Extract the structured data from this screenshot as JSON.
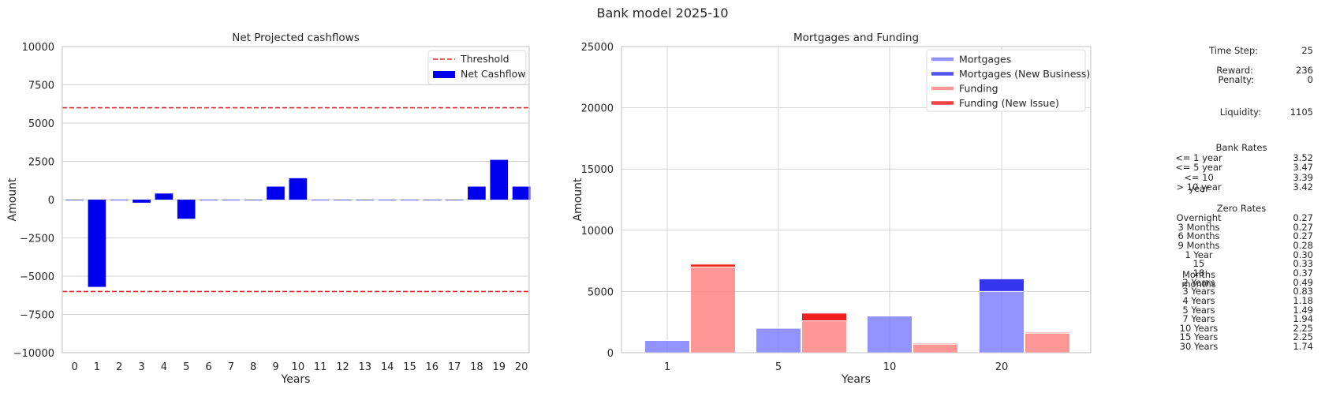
{
  "suptitle": "Bank model 2025-10",
  "chart_data": [
    {
      "type": "bar",
      "title": "Net Projected cashflows",
      "xlabel": "Years",
      "ylabel": "Amount",
      "categories": [
        "0",
        "1",
        "2",
        "3",
        "4",
        "5",
        "6",
        "7",
        "8",
        "9",
        "10",
        "11",
        "12",
        "13",
        "14",
        "15",
        "16",
        "17",
        "18",
        "19",
        "20"
      ],
      "series": [
        {
          "name": "Net Cashflow",
          "color": "#0000ee",
          "values": [
            0,
            -5700,
            0,
            -200,
            400,
            -1250,
            0,
            0,
            0,
            850,
            1400,
            0,
            0,
            0,
            0,
            0,
            0,
            0,
            850,
            2600,
            850
          ]
        }
      ],
      "threshold": {
        "name": "Threshold",
        "values": [
          6000,
          -6000
        ],
        "color": "#d62728"
      },
      "ylim": [
        -10000,
        10000
      ],
      "yticks": [
        10000,
        7500,
        5000,
        2500,
        0,
        -2500,
        -5000,
        -7500,
        -10000
      ],
      "ytick_labels": [
        "10000",
        "7500",
        "5000",
        "2500",
        "0",
        "−2500",
        "−5000",
        "−7500",
        "−10000"
      ],
      "grid": true,
      "legend": "top-right"
    },
    {
      "type": "bar",
      "title": "Mortgages and Funding",
      "xlabel": "Years",
      "ylabel": "Amount",
      "categories": [
        "1",
        "5",
        "10",
        "20"
      ],
      "series": [
        {
          "name": "Mortgages",
          "color": "#8080ff",
          "values": [
            1000,
            2000,
            3000,
            5000
          ]
        },
        {
          "name": "Mortgages (New Business)",
          "color": "#3535ee",
          "values": [
            0,
            0,
            0,
            1000
          ]
        },
        {
          "name": "Funding",
          "color": "#ff8585",
          "values": [
            7000,
            2600,
            700,
            1600
          ]
        },
        {
          "name": "Funding (New Issue)",
          "color": "#ee2020",
          "values": [
            200,
            600,
            50,
            50
          ]
        }
      ],
      "stacked": true,
      "ylim": [
        0,
        25000
      ],
      "yticks": [
        0,
        5000,
        10000,
        15000,
        20000,
        25000
      ],
      "grid": true,
      "legend": "top-right"
    }
  ],
  "side_panel": {
    "time_step": {
      "label": "Time Step:",
      "value": "25"
    },
    "reward": {
      "label": "Reward:",
      "value": "236"
    },
    "penalty": {
      "label": "Penalty:",
      "value": "0"
    },
    "liquidity": {
      "label": "Liquidity:",
      "value": "1105"
    },
    "bank_rates_title": "Bank Rates",
    "bank_rates": [
      {
        "label": "<= 1 year",
        "value": "3.52"
      },
      {
        "label": "<= 5 year",
        "value": "3.47"
      },
      {
        "label": "<= 10 year",
        "value": "3.39"
      },
      {
        "label": "> 10 year",
        "value": "3.42"
      }
    ],
    "zero_rates_title": "Zero Rates",
    "zero_rates": [
      {
        "label": "Overnight",
        "value": "0.27"
      },
      {
        "label": "3 Months",
        "value": "0.27"
      },
      {
        "label": "6 Months",
        "value": "0.27"
      },
      {
        "label": "9 Months",
        "value": "0.28"
      },
      {
        "label": "1 Year",
        "value": "0.30"
      },
      {
        "label": "15 Months",
        "value": "0.33"
      },
      {
        "label": "18 months",
        "value": "0.37"
      },
      {
        "label": "2 Years",
        "value": "0.49"
      },
      {
        "label": "3 Years",
        "value": "0.83"
      },
      {
        "label": "4 Years",
        "value": "1.18"
      },
      {
        "label": "5 Years",
        "value": "1.49"
      },
      {
        "label": "7 Years",
        "value": "1.94"
      },
      {
        "label": "10 Years",
        "value": "2.25"
      },
      {
        "label": "15 Years",
        "value": "2.25"
      },
      {
        "label": "30 Years",
        "value": "1.74"
      }
    ]
  }
}
